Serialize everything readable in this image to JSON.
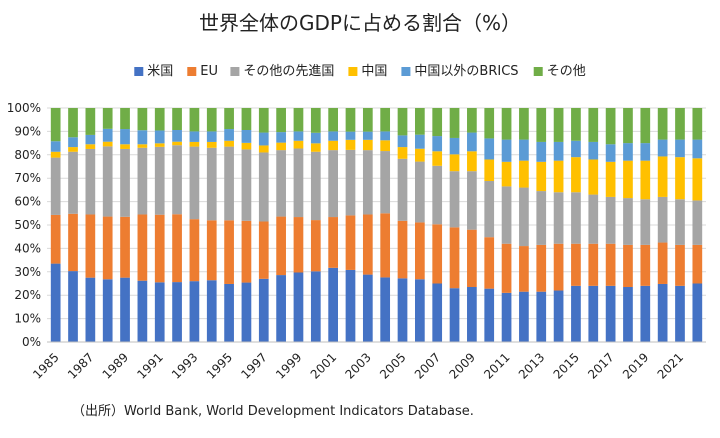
{
  "chart_data": {
    "type": "bar",
    "stacked": true,
    "title": "世界全体のGDPに占める割合（%）",
    "xlabel": "",
    "ylabel": "",
    "ylim": [
      0,
      100
    ],
    "y_ticks": [
      "0%",
      "10%",
      "20%",
      "30%",
      "40%",
      "50%",
      "60%",
      "70%",
      "80%",
      "90%",
      "100%"
    ],
    "x_tick_labels": [
      "1985",
      "1987",
      "1989",
      "1991",
      "1993",
      "1995",
      "1997",
      "1999",
      "2001",
      "2003",
      "2005",
      "2007",
      "2009",
      "2011",
      "2013",
      "2015",
      "2017",
      "2019",
      "2021"
    ],
    "categories": [
      "1985",
      "1986",
      "1987",
      "1988",
      "1989",
      "1990",
      "1991",
      "1992",
      "1993",
      "1994",
      "1995",
      "1996",
      "1997",
      "1998",
      "1999",
      "2000",
      "2001",
      "2002",
      "2003",
      "2004",
      "2005",
      "2006",
      "2007",
      "2008",
      "2009",
      "2010",
      "2011",
      "2012",
      "2013",
      "2014",
      "2015",
      "2016",
      "2017",
      "2018",
      "2019",
      "2020",
      "2021",
      "2022"
    ],
    "legend_position": "top",
    "series": [
      {
        "name": "米国",
        "color": "#4472C4",
        "values": [
          33.5,
          30.3,
          27.5,
          26.8,
          27.5,
          26.2,
          25.5,
          25.6,
          26.0,
          26.4,
          24.8,
          25.4,
          27.0,
          28.6,
          29.7,
          30.2,
          31.7,
          30.8,
          28.8,
          27.6,
          27.2,
          26.8,
          25.0,
          23.0,
          23.5,
          22.8,
          21.0,
          21.5,
          21.5,
          22.0,
          24.0,
          24.0,
          24.0,
          23.5,
          24.0,
          24.8,
          24.0,
          25.0
        ]
      },
      {
        "name": "EU",
        "color": "#ED7D31",
        "values": [
          20.8,
          24.5,
          27.0,
          26.8,
          26.0,
          28.3,
          28.9,
          29.0,
          26.5,
          25.6,
          27.2,
          26.4,
          24.5,
          25.0,
          23.7,
          21.9,
          21.7,
          23.3,
          25.7,
          27.4,
          24.6,
          24.3,
          25.3,
          26.0,
          24.5,
          22.0,
          21.0,
          19.5,
          20.0,
          20.0,
          18.0,
          18.0,
          18.0,
          18.0,
          17.5,
          17.7,
          17.5,
          16.5
        ]
      },
      {
        "name": "その他の先進国",
        "color": "#A5A5A5",
        "values": [
          24.5,
          26.5,
          28.0,
          30.0,
          29.0,
          28.5,
          29.0,
          29.5,
          31.0,
          31.0,
          31.5,
          30.5,
          29.5,
          28.4,
          29.3,
          29.2,
          28.6,
          28.0,
          27.5,
          26.6,
          26.5,
          26.0,
          25.0,
          24.0,
          25.0,
          24.0,
          24.5,
          25.0,
          23.0,
          22.0,
          22.0,
          21.0,
          20.0,
          20.0,
          19.5,
          19.5,
          19.5,
          19.0
        ]
      },
      {
        "name": "中国",
        "color": "#FFC000",
        "values": [
          2.5,
          2.0,
          2.0,
          2.0,
          2.0,
          1.5,
          1.5,
          1.5,
          2.0,
          2.5,
          2.5,
          2.8,
          3.0,
          3.2,
          3.3,
          3.6,
          4.0,
          4.3,
          4.4,
          4.6,
          5.0,
          5.5,
          6.2,
          7.2,
          8.5,
          9.2,
          10.5,
          11.5,
          12.5,
          13.5,
          15.0,
          15.0,
          15.0,
          16.0,
          16.5,
          17.3,
          18.0,
          18.0
        ]
      },
      {
        "name": "中国以外のBRICS",
        "color": "#5B9BD5",
        "values": [
          4.5,
          4.2,
          4.0,
          5.5,
          6.5,
          6.0,
          5.5,
          5.0,
          4.5,
          4.5,
          5.0,
          5.5,
          5.5,
          4.5,
          4.0,
          4.5,
          4.0,
          3.5,
          3.5,
          3.8,
          5.0,
          6.0,
          6.5,
          7.0,
          8.0,
          9.0,
          9.5,
          9.0,
          8.5,
          8.0,
          7.0,
          7.5,
          7.5,
          7.5,
          7.5,
          7.2,
          7.5,
          8.0
        ]
      },
      {
        "name": "その他",
        "color": "#70AD47",
        "values": [
          14.2,
          12.5,
          11.5,
          8.9,
          9.0,
          9.5,
          9.6,
          9.4,
          10.0,
          10.0,
          9.0,
          9.4,
          10.5,
          10.3,
          10.0,
          10.6,
          10.0,
          10.1,
          10.1,
          10.0,
          11.7,
          11.4,
          12.0,
          12.8,
          10.5,
          13.0,
          13.5,
          13.5,
          14.5,
          14.5,
          14.0,
          14.5,
          15.5,
          15.0,
          15.0,
          13.5,
          13.5,
          13.5
        ]
      }
    ]
  },
  "source": "（出所）World Bank, World Development Indicators Database."
}
